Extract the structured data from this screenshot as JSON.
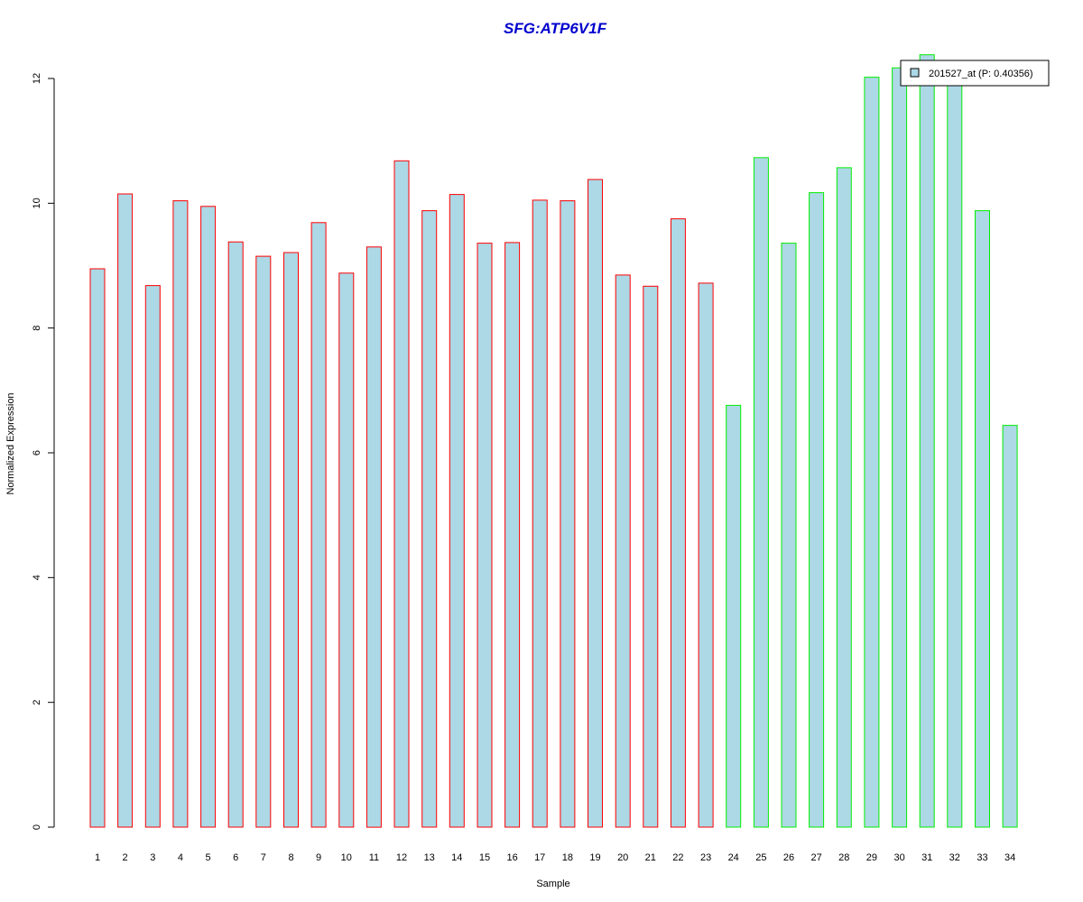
{
  "chart_data": {
    "type": "bar",
    "title": "SFG:ATP6V1F",
    "xlabel": "Sample",
    "ylabel": "Normalized Expression",
    "ylim": [
      0,
      12
    ],
    "yticks": [
      0,
      2,
      4,
      6,
      8,
      10,
      12
    ],
    "grid": false,
    "legend_position": "top-right",
    "categories": [
      "1",
      "2",
      "3",
      "4",
      "5",
      "6",
      "7",
      "8",
      "9",
      "10",
      "11",
      "12",
      "13",
      "14",
      "15",
      "16",
      "17",
      "18",
      "19",
      "20",
      "21",
      "22",
      "23",
      "24",
      "25",
      "26",
      "27",
      "28",
      "29",
      "30",
      "31",
      "32",
      "33",
      "34"
    ],
    "series": [
      {
        "name": "201527_at (P: 0.40356)",
        "values": [
          8.95,
          10.15,
          8.68,
          10.04,
          9.95,
          9.38,
          9.15,
          9.21,
          9.69,
          8.88,
          9.3,
          10.68,
          9.88,
          10.14,
          9.36,
          9.37,
          10.05,
          10.04,
          10.38,
          8.85,
          8.67,
          9.75,
          8.72,
          6.76,
          10.73,
          9.36,
          10.17,
          10.57,
          12.02,
          12.17,
          12.38,
          11.92,
          9.88,
          6.44
        ],
        "group": [
          "A",
          "A",
          "A",
          "A",
          "A",
          "A",
          "A",
          "A",
          "A",
          "A",
          "A",
          "A",
          "A",
          "A",
          "A",
          "A",
          "A",
          "A",
          "A",
          "A",
          "A",
          "A",
          "A",
          "B",
          "B",
          "B",
          "B",
          "B",
          "B",
          "B",
          "B",
          "B",
          "B",
          "B"
        ]
      }
    ],
    "colors": {
      "bar_fill": "#add8e6",
      "group_A_border": "#ff0000",
      "group_B_border": "#00ee00",
      "title": "#0000cd"
    }
  }
}
